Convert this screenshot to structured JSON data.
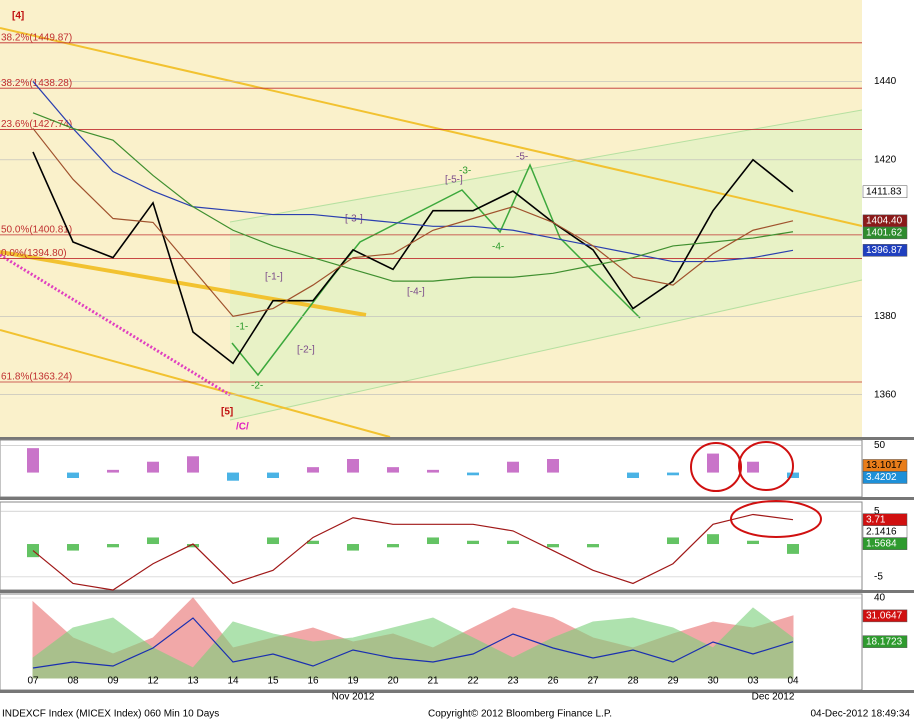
{
  "chart_data": [
    {
      "type": "line",
      "series": [
        {
          "color": "#000000",
          "values": [
            1422,
            1399,
            1395,
            1409,
            1376,
            1368,
            1384,
            1384,
            1397,
            1392,
            1407,
            1407,
            1412,
            1404,
            1397,
            1382,
            1389,
            1407,
            1420,
            1411.83
          ]
        },
        {
          "color": "#2b3fb0",
          "values": [
            1440,
            1428,
            1417,
            1412,
            1408,
            1407,
            1406,
            1406,
            1405,
            1404,
            1403,
            1403,
            1402,
            1400,
            1398,
            1396,
            1394,
            1394,
            1395,
            1396.87
          ]
        },
        {
          "color": "#3f8f2f",
          "values": [
            1432,
            1428,
            1425,
            1416,
            1408,
            1402,
            1398,
            1395,
            1392,
            1389,
            1389,
            1390,
            1390,
            1391,
            1393,
            1395,
            1398,
            1399,
            1400,
            1401.62
          ]
        },
        {
          "color": "#a0522d",
          "values": [
            1428,
            1415,
            1405,
            1404,
            1392,
            1380,
            1382,
            1388,
            1395,
            1396,
            1402,
            1405,
            1408,
            1404,
            1398,
            1390,
            1388,
            1396,
            1402,
            1404.4
          ]
        }
      ],
      "ylim": [
        1349.2,
        1460.8
      ],
      "yticks": [
        1360,
        1380,
        1420,
        1440
      ],
      "grid": true,
      "price_labels": [
        {
          "value": 1411.83,
          "label": "1411.83",
          "color": "#ffffff",
          "text_color": "#000000"
        },
        {
          "value": 1404.4,
          "label": "1404.40",
          "color": "#8b1a1a",
          "text_color": "#ffffff"
        },
        {
          "value": 1401.62,
          "label": "1401.62",
          "color": "#2e8b2e",
          "text_color": "#ffffff"
        },
        {
          "value": 1396.87,
          "label": "1396.87",
          "color": "#1f3fbf",
          "text_color": "#ffffff"
        }
      ],
      "fib_levels": [
        {
          "label": "38.2%(1449.87)",
          "value": 1449.87
        },
        {
          "label": "38.2%(1438.28)",
          "value": 1438.28
        },
        {
          "label": "23.6%(1427.74)",
          "value": 1427.74
        },
        {
          "label": "50.0%(1400.81)",
          "value": 1400.81
        },
        {
          "label": "0.0%(1394.80)",
          "value": 1394.8
        },
        {
          "label": "61.8%(1363.24)",
          "value": 1363.24
        }
      ],
      "annotations": [
        "[4]",
        "[5]",
        "/C/",
        "-1-",
        "-2-",
        "[-1-]",
        "[-2-]",
        "[-3-]",
        "[-4-]",
        "[-5-]",
        "-3-",
        "-4-",
        "-5-"
      ]
    },
    {
      "type": "bar",
      "series": [
        {
          "color": "#c05cc0",
          "negative_color": "#2aa6e0",
          "values": [
            45,
            -10,
            5,
            20,
            30,
            -15,
            -10,
            10,
            25,
            10,
            5,
            -5,
            20,
            25,
            0,
            -10,
            -5,
            35,
            20,
            -10
          ]
        }
      ],
      "ylim": [
        -45,
        60
      ],
      "yticks": [
        50
      ],
      "price_labels": [
        {
          "value": 3.4202,
          "label": "3.4202",
          "color": "#1e90d8",
          "text_color": "#ffffff"
        },
        {
          "value": 13.1017,
          "label": "13.1017",
          "color": "#e87d1a",
          "text_color": "#000000"
        }
      ]
    },
    {
      "type": "line",
      "series": [
        {
          "color": "#49b849",
          "kind": "bar",
          "values": [
            -2,
            -1,
            -0.5,
            1,
            -0.5,
            0,
            1,
            0.5,
            -1,
            -0.5,
            1,
            0.5,
            0.5,
            -0.5,
            -0.5,
            0,
            1,
            1.5,
            0.5,
            -1.5
          ]
        },
        {
          "color": "#a01818",
          "values": [
            -1,
            -6,
            -7,
            -3,
            0,
            -6,
            -4,
            1,
            4,
            3,
            3,
            3,
            2,
            -1,
            -4,
            -6,
            -3,
            3,
            4.5,
            3.71
          ]
        }
      ],
      "ylim": [
        -7,
        6.4
      ],
      "yticks": [
        -5,
        5
      ],
      "price_labels": [
        {
          "value": 3.71,
          "label": "3.71",
          "color": "#d01010",
          "text_color": "#ffffff"
        },
        {
          "value": 2.1416,
          "label": "2.1416",
          "color": "#ffffff",
          "text_color": "#000000"
        },
        {
          "value": 1.5684,
          "label": "1.5684",
          "color": "#2e9b2e",
          "text_color": "#ffffff"
        }
      ]
    },
    {
      "type": "line",
      "series": [
        {
          "color": "#e87070",
          "kind": "area",
          "values": [
            38,
            20,
            12,
            20,
            40,
            15,
            20,
            25,
            18,
            22,
            15,
            25,
            35,
            30,
            20,
            15,
            22,
            28,
            25,
            31.0647
          ]
        },
        {
          "color": "#7ad07a",
          "kind": "area",
          "values": [
            10,
            25,
            30,
            15,
            5,
            28,
            22,
            18,
            20,
            25,
            30,
            20,
            10,
            20,
            28,
            30,
            25,
            15,
            35,
            20
          ]
        },
        {
          "color": "#1a2fb0",
          "values": [
            5,
            8,
            6,
            15,
            30,
            8,
            12,
            6,
            14,
            10,
            8,
            12,
            22,
            15,
            10,
            14,
            8,
            18,
            12,
            18.1723
          ]
        }
      ],
      "ylim": [
        -6,
        42
      ],
      "yticks": [
        40
      ],
      "price_labels": [
        {
          "value": 31.0647,
          "label": "31.0647",
          "color": "#d01010",
          "text_color": "#ffffff"
        },
        {
          "value": 18.1723,
          "label": "18.1723",
          "color": "#2e9b2e",
          "text_color": "#ffffff"
        }
      ],
      "categories": [
        "07",
        "08",
        "09",
        "12",
        "13",
        "14",
        "15",
        "16",
        "19",
        "20",
        "21",
        "22",
        "23",
        "26",
        "27",
        "28",
        "29",
        "30",
        "03",
        "04"
      ],
      "month_labels": [
        "Nov 2012",
        "Dec 2012"
      ]
    }
  ],
  "footer": {
    "left": "INDEXCF Index (MICEX Index) 060 Min 10 Days",
    "center": "Copyright© 2012 Bloomberg Finance L.P.",
    "right": "04-Dec-2012 18:49:34"
  }
}
